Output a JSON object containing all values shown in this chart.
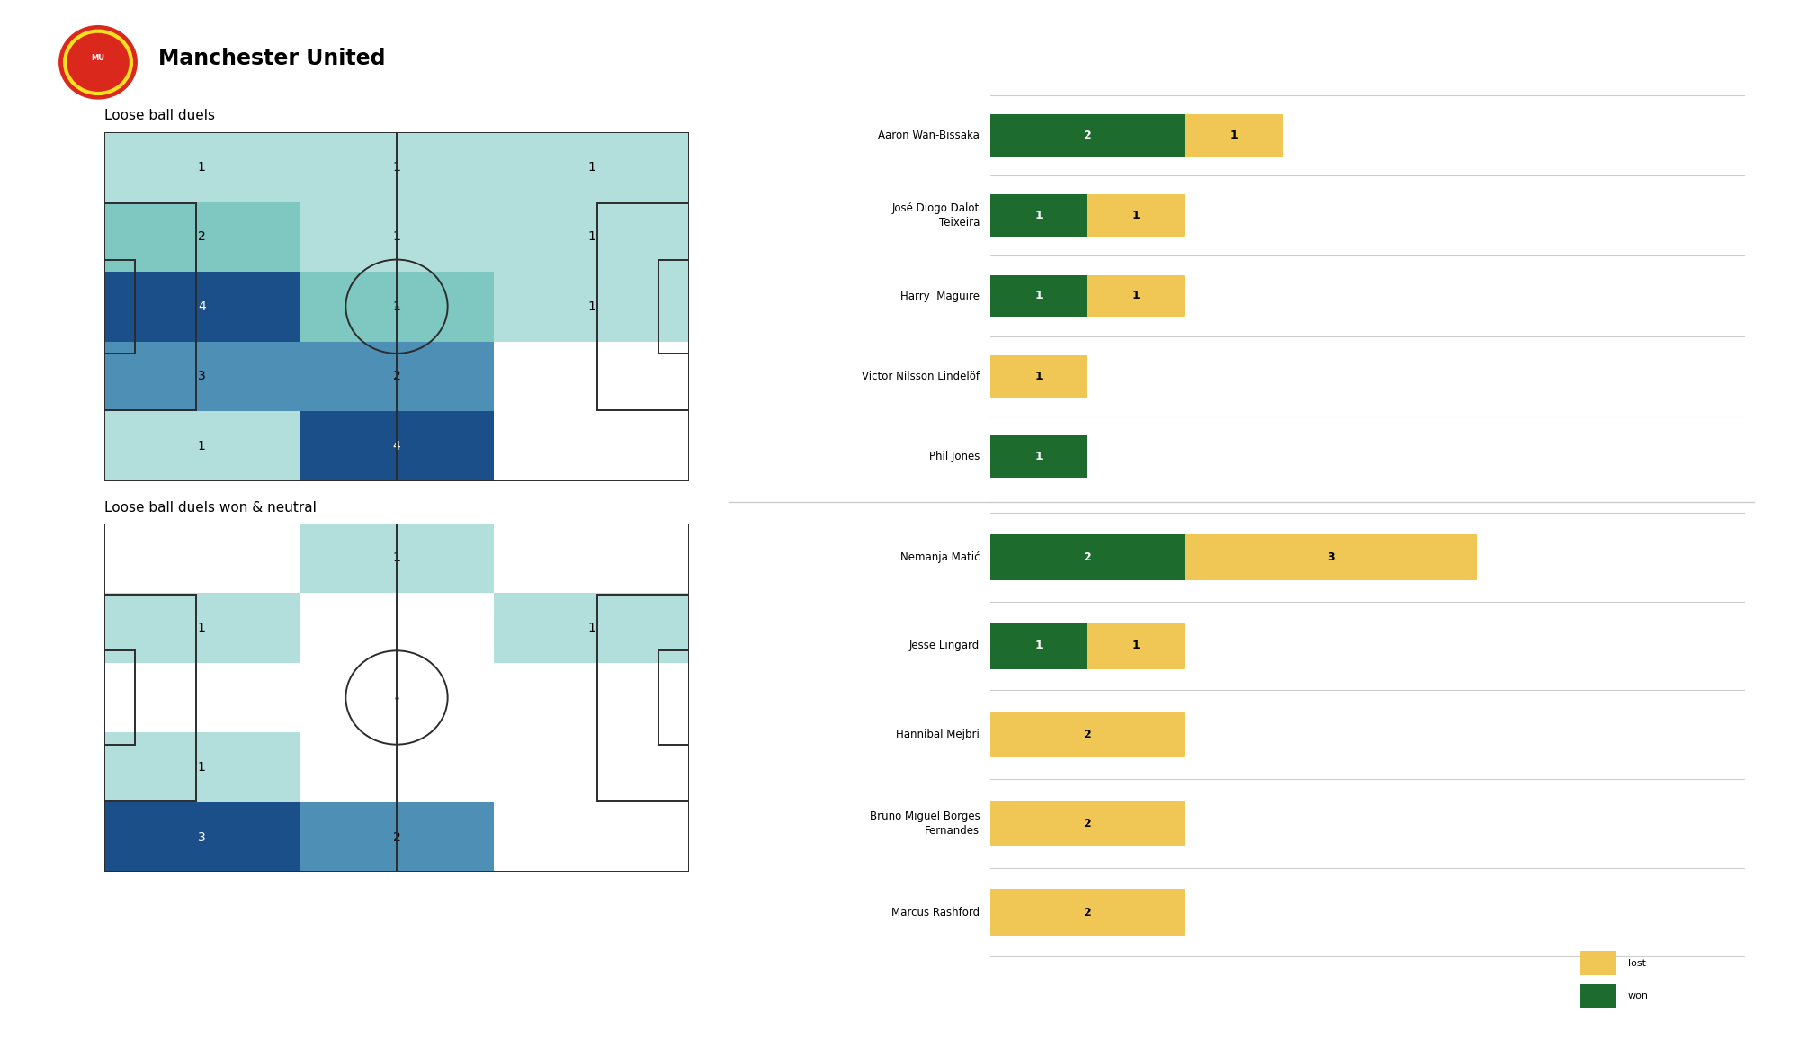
{
  "title": "Manchester United",
  "section1_title": "Loose ball duels",
  "section2_title": "Loose ball duels won & neutral",
  "heatmap1_colors": [
    [
      "#b2dfdb",
      "#b2dfdb",
      "#b2dfdb"
    ],
    [
      "#7ec8c1",
      "#b2dfdb",
      "#b2dfdb"
    ],
    [
      "#1b4f8a",
      "#7ec8c1",
      "#b2dfdb"
    ],
    [
      "#4e8fb5",
      "#4e8fb5",
      "#ffffff"
    ],
    [
      "#b2dfdb",
      "#1b4f8a",
      "#ffffff"
    ]
  ],
  "heatmap1_labels": [
    [
      1,
      1,
      1
    ],
    [
      2,
      1,
      1
    ],
    [
      4,
      1,
      1
    ],
    [
      3,
      2,
      0
    ],
    [
      1,
      4,
      0
    ]
  ],
  "heatmap2_colors": [
    [
      "#ffffff",
      "#b2dfdb",
      "#ffffff"
    ],
    [
      "#b2dfdb",
      "#ffffff",
      "#b2dfdb"
    ],
    [
      "#ffffff",
      "#ffffff",
      "#ffffff"
    ],
    [
      "#b2dfdb",
      "#ffffff",
      "#ffffff"
    ],
    [
      "#1b4f8a",
      "#4e8fb5",
      "#ffffff"
    ]
  ],
  "heatmap2_labels": [
    [
      0,
      1,
      0
    ],
    [
      1,
      0,
      1
    ],
    [
      0,
      0,
      0
    ],
    [
      1,
      0,
      0
    ],
    [
      3,
      2,
      0
    ]
  ],
  "defenders": [
    {
      "name": "Aaron Wan-Bissaka",
      "won": 2,
      "lost": 1
    },
    {
      "name": "José Diogo Dalot\nTeixeira",
      "won": 1,
      "lost": 1
    },
    {
      "name": "Harry  Maguire",
      "won": 1,
      "lost": 1
    },
    {
      "name": "Victor Nilsson Lindelöf",
      "won": 0,
      "lost": 1
    },
    {
      "name": "Phil Jones",
      "won": 1,
      "lost": 0
    }
  ],
  "midfielders": [
    {
      "name": "Nemanja Matić",
      "won": 2,
      "lost": 3
    },
    {
      "name": "Jesse Lingard",
      "won": 1,
      "lost": 1
    },
    {
      "name": "Hannibal Mejbri",
      "won": 0,
      "lost": 2
    },
    {
      "name": "Bruno Miguel Borges\nFernandes",
      "won": 0,
      "lost": 2
    },
    {
      "name": "Marcus Rashford",
      "won": 0,
      "lost": 2
    }
  ],
  "color_won": "#1e6b2e",
  "color_lost": "#f0c755",
  "bg_color": "#ffffff",
  "dark_blue": "#1b4f8a",
  "mid_blue": "#4e8fb5",
  "light_blue2": "#7ec8c1",
  "light_blue1": "#b2dfdb",
  "pitch_line_color": "#2c2c2c"
}
